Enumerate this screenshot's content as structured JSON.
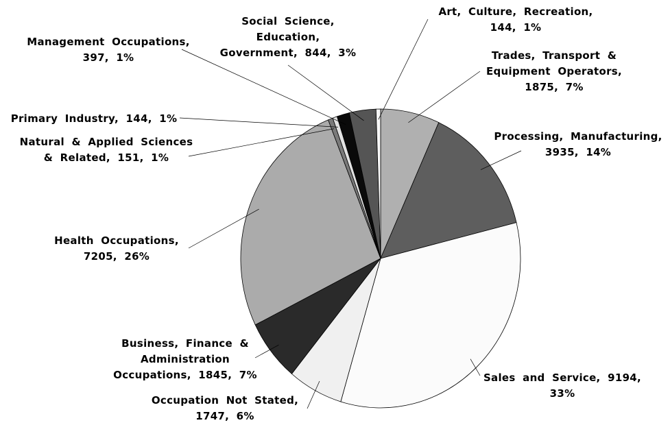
{
  "chart_data": {
    "type": "pie",
    "categories": [
      "Trades, Transport & Equipment Operators,",
      "Processing, Manufacturing,",
      "Sales and Service,",
      "Occupation Not Stated,",
      "Business, Finance & Administration Occupations,",
      "Health Occupations,",
      "Natural & Applied Sciences & Related,",
      "Primary Industry,",
      "Management Occupations,",
      "Social Science, Education, Government,",
      "Art, Culture, Recreation,"
    ],
    "values": [
      1875,
      3935,
      9194,
      1747,
      1845,
      7205,
      151,
      144,
      397,
      844,
      144
    ],
    "value_labels": [
      "1875, 7%",
      "3935, 14%",
      "9194, 33%",
      "1747, 6%",
      "1845, 7%",
      "7205, 26%",
      "151, 1%",
      "144, 1%",
      "397, 1%",
      "844, 3%",
      "144, 1%"
    ],
    "colors": [
      "#b0b0b0",
      "#5e5e5e",
      "#fbfbfb",
      "#f0f0f0",
      "#2a2a2a",
      "#ababab",
      "#7a7a7a",
      "#e2e2e2",
      "#0a0a0a",
      "#555555",
      "#f7f7f7"
    ]
  }
}
